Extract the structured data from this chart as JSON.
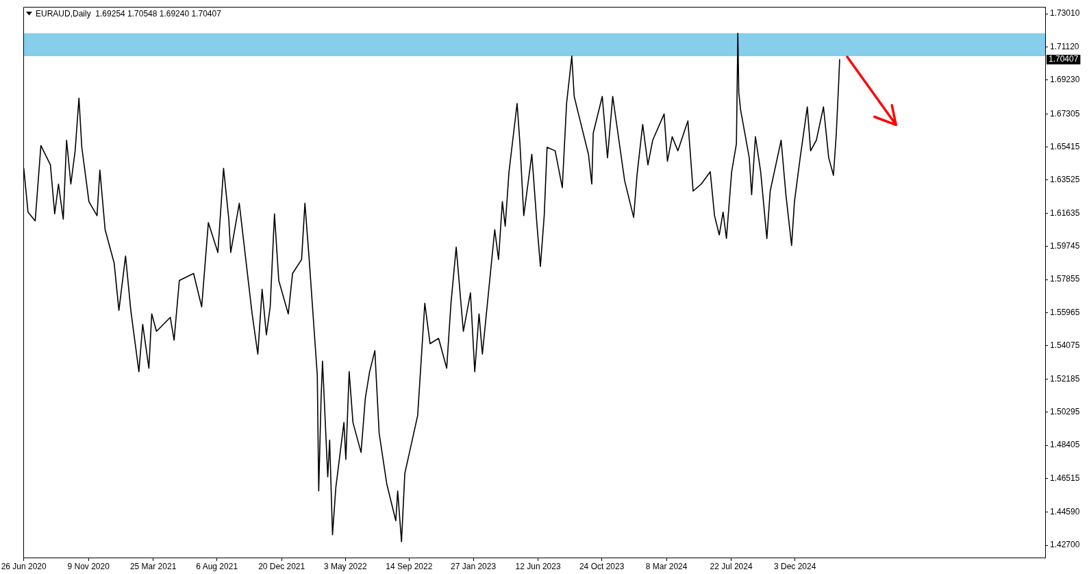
{
  "chart_data": {
    "type": "line",
    "title": "EURAUD,Daily  1.69254 1.70548 1.69240 1.70407",
    "x": [
      "2020-06-26",
      "2020-07-05",
      "2020-07-20",
      "2020-08-01",
      "2020-08-21",
      "2020-08-30",
      "2020-09-07",
      "2020-09-17",
      "2020-09-24",
      "2020-10-03",
      "2020-10-12",
      "2020-10-20",
      "2020-10-26",
      "2020-11-10",
      "2020-11-27",
      "2020-12-03",
      "2020-12-14",
      "2021-01-02",
      "2021-01-12",
      "2021-01-26",
      "2021-02-06",
      "2021-02-23",
      "2021-03-03",
      "2021-03-16",
      "2021-03-22",
      "2021-04-01",
      "2021-04-30",
      "2021-05-08",
      "2021-05-19",
      "2021-06-18",
      "2021-07-05",
      "2021-07-19",
      "2021-08-08",
      "2021-08-20",
      "2021-08-31",
      "2021-09-04",
      "2021-09-22",
      "2021-10-19",
      "2021-10-31",
      "2021-11-09",
      "2021-11-18",
      "2021-11-26",
      "2021-12-05",
      "2021-12-14",
      "2022-01-03",
      "2022-01-12",
      "2022-01-31",
      "2022-02-07",
      "2022-02-16",
      "2022-03-05",
      "2022-03-08",
      "2022-03-13",
      "2022-03-16",
      "2022-03-27",
      "2022-03-31",
      "2022-04-06",
      "2022-04-13",
      "2022-04-30",
      "2022-05-04",
      "2022-05-11",
      "2022-05-19",
      "2022-06-05",
      "2022-06-14",
      "2022-06-23",
      "2022-07-04",
      "2022-07-13",
      "2022-07-29",
      "2022-08-17",
      "2022-08-21",
      "2022-08-29",
      "2022-09-05",
      "2022-10-02",
      "2022-10-17",
      "2022-10-28",
      "2022-11-15",
      "2022-12-02",
      "2022-12-11",
      "2022-12-22",
      "2023-01-06",
      "2023-01-21",
      "2023-01-30",
      "2023-02-08",
      "2023-02-15",
      "2023-03-13",
      "2023-03-21",
      "2023-03-29",
      "2023-04-04",
      "2023-04-12",
      "2023-04-29",
      "2023-05-05",
      "2023-05-13",
      "2023-05-30",
      "2023-06-10",
      "2023-06-17",
      "2023-06-25",
      "2023-07-01",
      "2023-07-18",
      "2023-08-02",
      "2023-08-11",
      "2023-08-22",
      "2023-08-27",
      "2023-09-05",
      "2023-09-26",
      "2023-10-03",
      "2023-10-06",
      "2023-10-25",
      "2023-11-05",
      "2023-11-16",
      "2023-12-11",
      "2023-12-30",
      "2024-01-06",
      "2024-01-18",
      "2024-01-29",
      "2024-02-08",
      "2024-03-03",
      "2024-03-10",
      "2024-03-20",
      "2024-04-01",
      "2024-04-22",
      "2024-05-03",
      "2024-05-20",
      "2024-06-08",
      "2024-06-17",
      "2024-06-27",
      "2024-07-05",
      "2024-07-12",
      "2024-07-23",
      "2024-08-02",
      "2024-08-05",
      "2024-08-07",
      "2024-08-11",
      "2024-08-29",
      "2024-09-03",
      "2024-09-11",
      "2024-09-22",
      "2024-10-05",
      "2024-10-12",
      "2024-11-04",
      "2024-11-14",
      "2024-11-26",
      "2024-12-02",
      "2024-12-14",
      "2024-12-29",
      "2025-01-05",
      "2025-01-17",
      "2025-02-01",
      "2025-02-12",
      "2025-02-22",
      "2025-02-28",
      "2025-03-05",
      "2025-03-07"
    ],
    "series": [
      {
        "color": "#000000",
        "values": [
          1.642,
          1.617,
          1.612,
          1.655,
          1.644,
          1.616,
          1.633,
          1.613,
          1.658,
          1.633,
          1.652,
          1.682,
          1.654,
          1.623,
          1.615,
          1.641,
          1.607,
          1.588,
          1.561,
          1.592,
          1.561,
          1.526,
          1.553,
          1.528,
          1.559,
          1.549,
          1.557,
          1.544,
          1.578,
          1.582,
          1.563,
          1.611,
          1.594,
          1.642,
          1.613,
          1.594,
          1.622,
          1.559,
          1.536,
          1.573,
          1.547,
          1.563,
          1.616,
          1.578,
          1.559,
          1.582,
          1.59,
          1.622,
          1.59,
          1.524,
          1.458,
          1.511,
          1.532,
          1.466,
          1.487,
          1.433,
          1.46,
          1.497,
          1.476,
          1.526,
          1.497,
          1.48,
          1.511,
          1.526,
          1.538,
          1.491,
          1.462,
          1.441,
          1.458,
          1.429,
          1.468,
          1.501,
          1.565,
          1.542,
          1.545,
          1.528,
          1.565,
          1.597,
          1.549,
          1.571,
          1.526,
          1.559,
          1.536,
          1.607,
          1.59,
          1.623,
          1.609,
          1.64,
          1.679,
          1.656,
          1.615,
          1.65,
          1.609,
          1.586,
          1.615,
          1.654,
          1.652,
          1.631,
          1.679,
          1.706,
          1.683,
          1.673,
          1.65,
          1.633,
          1.662,
          1.683,
          1.648,
          1.683,
          1.635,
          1.614,
          1.638,
          1.667,
          1.644,
          1.658,
          1.673,
          1.646,
          1.66,
          1.652,
          1.669,
          1.629,
          1.633,
          1.64,
          1.615,
          1.604,
          1.617,
          1.602,
          1.64,
          1.656,
          1.719,
          1.685,
          1.675,
          1.648,
          1.627,
          1.66,
          1.64,
          1.602,
          1.629,
          1.658,
          1.627,
          1.598,
          1.623,
          1.648,
          1.677,
          1.652,
          1.658,
          1.677,
          1.648,
          1.638,
          1.662,
          1.691,
          1.704
        ]
      }
    ],
    "xlim": [
      "2020-06-25",
      "2026-05-13"
    ],
    "xticks": [
      {
        "value": "2020-06-26",
        "label": "26 Jun 2020"
      },
      {
        "value": "2020-11-09",
        "label": "9 Nov 2020"
      },
      {
        "value": "2021-03-25",
        "label": "25 Mar 2021"
      },
      {
        "value": "2021-08-06",
        "label": "6 Aug 2021"
      },
      {
        "value": "2021-12-20",
        "label": "20 Dec 2021"
      },
      {
        "value": "2022-05-03",
        "label": "3 May 2022"
      },
      {
        "value": "2022-09-14",
        "label": "14 Sep 2022"
      },
      {
        "value": "2023-01-27",
        "label": "27 Jan 2023"
      },
      {
        "value": "2023-06-12",
        "label": "12 Jun 2023"
      },
      {
        "value": "2023-10-24",
        "label": "24 Oct 2023"
      },
      {
        "value": "2024-03-08",
        "label": "8 Mar 2024"
      },
      {
        "value": "2024-07-22",
        "label": "22 Jul 2024"
      },
      {
        "value": "2024-12-03",
        "label": "3 Dec 2024"
      }
    ],
    "ylim": [
      1.42,
      1.734
    ],
    "yticks": [
      {
        "value": 1.427,
        "label": "1.42700"
      },
      {
        "value": 1.4459,
        "label": "1.44590"
      },
      1.46515,
      1.48405,
      1.50295,
      1.52185,
      1.54075,
      1.55965,
      1.57855,
      1.59745,
      1.61635,
      1.63525,
      1.65415,
      1.67305,
      {
        "value": 1.6923,
        "label": "1.69230"
      },
      {
        "value": 1.7112,
        "label": "1.71120"
      },
      {
        "value": 1.7301,
        "label": "1.73010"
      }
    ],
    "bands": [
      {
        "axis": "y",
        "from": 1.706,
        "to": 1.719,
        "color": "#87ceeb"
      }
    ],
    "annotations": [
      "1.70407"
    ]
  }
}
